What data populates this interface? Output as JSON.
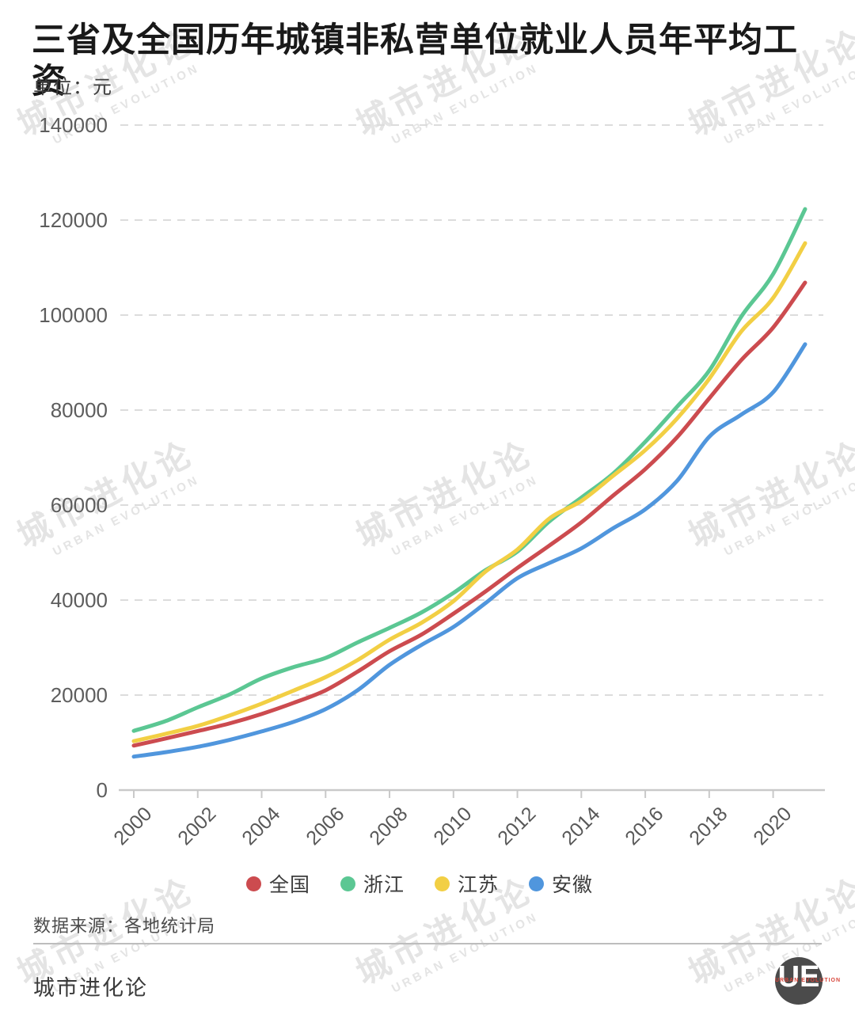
{
  "header": {
    "title": "三省及全国历年城镇非私营单位就业人员年平均工资",
    "unit_label": "单位：元"
  },
  "watermark": {
    "line1": "城市进化论",
    "line2": "URBAN EVOLUTION"
  },
  "footer": {
    "source": "数据来源：各地统计局",
    "brand": "城市进化论",
    "logo_text": "UE",
    "logo_subtext": "URBAN EVOLUTION"
  },
  "colors": {
    "national": "#cc4b4f",
    "zhejiang": "#5bc793",
    "jiangsu": "#f2cf44",
    "anhui": "#5096dd",
    "gridline": "#dcdcdc",
    "axis": "#c9c9c9",
    "axis_text": "#5d5d5d",
    "watermark": "#e4e4e4"
  },
  "chart_data": {
    "type": "line",
    "title": "三省及全国历年城镇非私营单位就业人员年平均工资",
    "unit": "元",
    "x": [
      2000,
      2001,
      2002,
      2003,
      2004,
      2005,
      2006,
      2007,
      2008,
      2009,
      2010,
      2011,
      2012,
      2013,
      2014,
      2015,
      2016,
      2017,
      2018,
      2019,
      2020,
      2021
    ],
    "x_tick_labels": [
      "2000",
      "2002",
      "2004",
      "2006",
      "2008",
      "2010",
      "2012",
      "2014",
      "2016",
      "2018",
      "2020"
    ],
    "ylim": [
      0,
      140000
    ],
    "y_ticks": [
      0,
      20000,
      40000,
      60000,
      80000,
      100000,
      120000,
      140000
    ],
    "grid": "horizontal-dashed",
    "legend_position": "bottom-center",
    "series": [
      {
        "name": "全国",
        "color": "#cc4b4f",
        "values": [
          9371,
          10870,
          12422,
          14040,
          16024,
          18364,
          21001,
          24932,
          29229,
          32736,
          37147,
          41799,
          46769,
          51483,
          56360,
          62029,
          67569,
          74318,
          82461,
          90501,
          97379,
          106837
        ]
      },
      {
        "name": "浙江",
        "color": "#5bc793",
        "values": [
          12466,
          14538,
          17416,
          20147,
          23506,
          25896,
          27820,
          31086,
          34146,
          37395,
          41505,
          46286,
          50197,
          56571,
          61572,
          66668,
          73326,
          80750,
          88297,
          99654,
          108645,
          122309
        ]
      },
      {
        "name": "江苏",
        "color": "#f2cf44",
        "values": [
          10299,
          11842,
          13509,
          15712,
          18202,
          20957,
          23782,
          27374,
          31667,
          35217,
          39772,
          45987,
          50639,
          57177,
          60867,
          66196,
          71574,
          78267,
          86590,
          96527,
          103621,
          115133
        ]
      },
      {
        "name": "安徽",
        "color": "#5096dd",
        "values": [
          7041,
          7975,
          9109,
          10581,
          12352,
          14363,
          17043,
          21011,
          26363,
          30566,
          34341,
          39352,
          44601,
          47806,
          50894,
          55139,
          59102,
          65150,
          74378,
          79037,
          83752,
          93861
        ]
      }
    ]
  }
}
